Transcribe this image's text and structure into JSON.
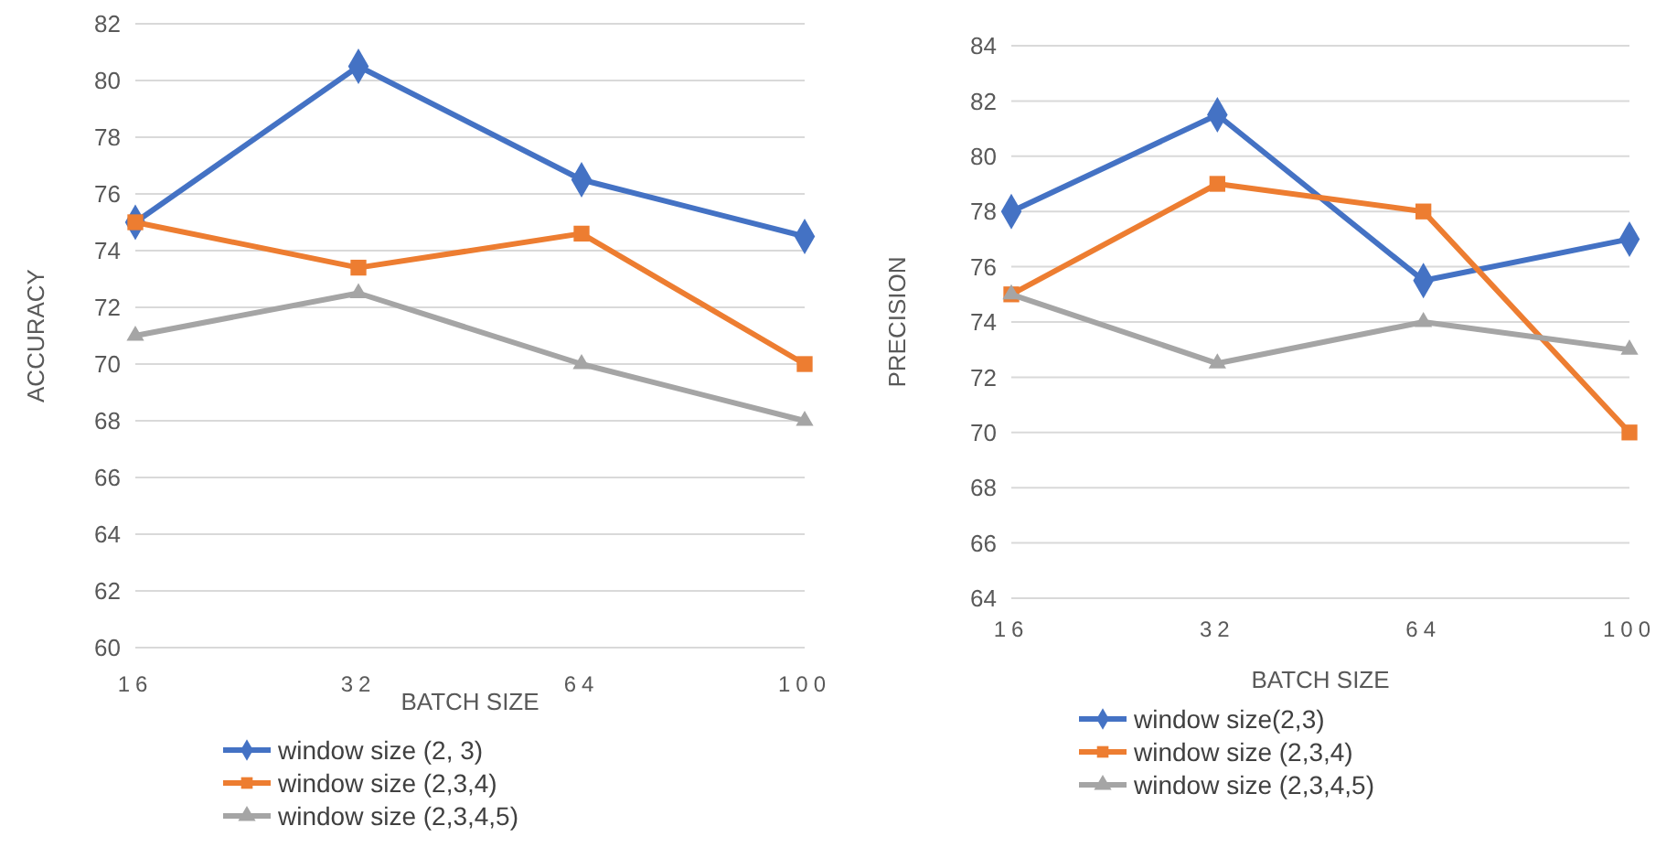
{
  "chart_data": [
    {
      "type": "line",
      "xlabel": "BATCH SIZE",
      "ylabel": "ACCURACY",
      "categories": [
        "16",
        "32",
        "64",
        "100"
      ],
      "ylim": [
        60,
        82
      ],
      "yticks": [
        60,
        62,
        64,
        66,
        68,
        70,
        72,
        74,
        76,
        78,
        80,
        82
      ],
      "grid": "y",
      "legend": "bottom",
      "series": [
        {
          "name": "window size (2, 3)",
          "color": "#4472c4",
          "marker": "diamond",
          "values": [
            75,
            80.5,
            76.5,
            74.5
          ]
        },
        {
          "name": "window size (2,3,4)",
          "color": "#ed7d31",
          "marker": "square",
          "values": [
            75,
            73.4,
            74.6,
            70
          ]
        },
        {
          "name": "window size (2,3,4,5)",
          "color": "#a5a5a5",
          "marker": "triangle",
          "values": [
            71,
            72.5,
            70,
            68
          ]
        }
      ]
    },
    {
      "type": "line",
      "xlabel": "BATCH SIZE",
      "ylabel": "PRECISION",
      "categories": [
        "16",
        "32",
        "64",
        "100"
      ],
      "ylim": [
        64,
        84
      ],
      "yticks": [
        64,
        66,
        68,
        70,
        72,
        74,
        76,
        78,
        80,
        82,
        84
      ],
      "grid": "y",
      "legend": "bottom",
      "series": [
        {
          "name": "window size(2,3)",
          "color": "#4472c4",
          "marker": "diamond",
          "values": [
            78,
            81.5,
            75.5,
            77
          ]
        },
        {
          "name": "window size (2,3,4)",
          "color": "#ed7d31",
          "marker": "square",
          "values": [
            75,
            79,
            78,
            70
          ]
        },
        {
          "name": "window size (2,3,4,5)",
          "color": "#a5a5a5",
          "marker": "triangle",
          "values": [
            75,
            72.5,
            74,
            73
          ]
        }
      ]
    }
  ]
}
